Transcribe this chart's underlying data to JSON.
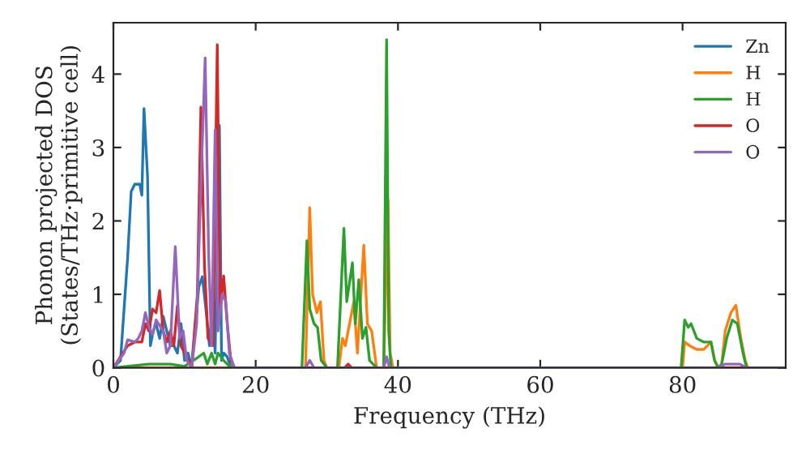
{
  "chart_data": {
    "type": "line",
    "xlabel": "Frequency (THz)",
    "ylabel": "Phonon projected DOS\n(States/THz·primitive cell)",
    "xlim": [
      0,
      94.5
    ],
    "ylim": [
      0,
      4.7
    ],
    "xticks": [
      0,
      20,
      40,
      60,
      80
    ],
    "yticks": [
      0,
      1,
      2,
      3,
      4
    ],
    "grid": false,
    "legend": "top right",
    "series": [
      {
        "name": "Zn",
        "color": "#1f77b4",
        "x": [
          0,
          1,
          2,
          2.5,
          3,
          3.7,
          4,
          4.3,
          4.8,
          5.2,
          5.6,
          6,
          6.5,
          7,
          7.5,
          8,
          8.5,
          9,
          9.5,
          10,
          10.5,
          11,
          12,
          12.5,
          13,
          13.5,
          14,
          14.3,
          14.9,
          15.2,
          15.5,
          16,
          16.5,
          17,
          94
        ],
        "values": [
          0,
          0.1,
          1.5,
          2.4,
          2.5,
          2.5,
          2.35,
          3.53,
          2.6,
          0.3,
          0.5,
          0.6,
          0.4,
          0.7,
          0.5,
          0.3,
          0.3,
          0.2,
          0.6,
          0.1,
          0.2,
          0,
          1.1,
          1.24,
          0.8,
          0.3,
          0.98,
          0.2,
          3.3,
          0.1,
          0.2,
          0.15,
          0,
          0,
          0
        ]
      },
      {
        "name": "H",
        "color": "#ff7f0e",
        "x": [
          0,
          27,
          27.6,
          28,
          28.6,
          29.1,
          29.6,
          30,
          31.7,
          32.2,
          32.6,
          33.2,
          33.8,
          34.3,
          35.2,
          35.7,
          36.3,
          37,
          38,
          38.6,
          38.9,
          39.3,
          80,
          80.3,
          81,
          82,
          83,
          84,
          84.5,
          85,
          85.5,
          86,
          86.8,
          87.5,
          88.2,
          88.8,
          89.2,
          94
        ],
        "values": [
          0,
          0,
          2.18,
          1.0,
          0.75,
          0.9,
          0.1,
          0,
          0,
          0.4,
          0.3,
          0.6,
          0.9,
          0.2,
          1.67,
          0.6,
          0.5,
          0,
          0,
          2.29,
          0.2,
          0,
          0,
          0.35,
          0.3,
          0.25,
          0.25,
          0.35,
          0.1,
          0,
          0.05,
          0.5,
          0.75,
          0.85,
          0.4,
          0.1,
          0,
          0
        ]
      },
      {
        "name": "H",
        "color": "#2ca02c",
        "x": [
          0,
          3,
          5,
          8,
          10,
          12,
          12.7,
          13.2,
          13.8,
          14.3,
          14.7,
          15.5,
          16.5,
          26.5,
          27.2,
          27.6,
          28.2,
          28.7,
          29.2,
          30,
          31.5,
          32.4,
          32.8,
          33.6,
          34,
          34.5,
          35,
          35.5,
          36,
          37,
          38,
          38.4,
          38.7,
          39,
          79.8,
          80.3,
          80.8,
          81.2,
          82,
          83,
          84,
          84.5,
          85,
          85.5,
          86.2,
          87,
          87.7,
          88.5,
          89,
          94
        ],
        "values": [
          0,
          0.03,
          0.05,
          0.05,
          0.02,
          0.15,
          0.2,
          0.05,
          0.2,
          0.05,
          0.2,
          0.1,
          0,
          0,
          1.73,
          0.8,
          0.6,
          0.55,
          0.1,
          0,
          0,
          1.9,
          0.9,
          1.43,
          0.6,
          1.2,
          0.4,
          0.55,
          0.1,
          0,
          0,
          4.47,
          0.5,
          0,
          0,
          0.65,
          0.55,
          0.6,
          0.4,
          0.35,
          0.35,
          0.1,
          0,
          0.05,
          0.4,
          0.65,
          0.6,
          0.2,
          0,
          0
        ]
      },
      {
        "name": "O",
        "color": "#d62728",
        "x": [
          0,
          2,
          3,
          4,
          4.5,
          5,
          5.5,
          6,
          6.5,
          7,
          7.5,
          8,
          8.5,
          9,
          9.5,
          10,
          11,
          11.8,
          12.3,
          12.8,
          13.3,
          14,
          14.6,
          15,
          15.5,
          16,
          16.5,
          17,
          32.5,
          33,
          33.5,
          94
        ],
        "values": [
          0,
          0.3,
          0.35,
          0.35,
          0.6,
          0.5,
          0.8,
          0.75,
          1.05,
          0.5,
          0.35,
          0.5,
          0.3,
          0.85,
          0.3,
          0.2,
          0,
          1.0,
          3.55,
          1.4,
          0.4,
          0.3,
          4.4,
          0.8,
          1.25,
          0.6,
          0.1,
          0,
          0,
          0.05,
          0,
          0
        ]
      },
      {
        "name": "O",
        "color": "#9467bd",
        "x": [
          0,
          1.5,
          2,
          3,
          3.5,
          4,
          4.5,
          5,
          5.5,
          6,
          7,
          7.5,
          8,
          8.7,
          9.3,
          9.8,
          10.3,
          11,
          11.7,
          12.3,
          12.9,
          13.4,
          13.8,
          14.3,
          14.7,
          15.3,
          15.8,
          16.3,
          17,
          27,
          27.6,
          28.2,
          38,
          38.4,
          38.8,
          85,
          86,
          88,
          89,
          94
        ],
        "values": [
          0,
          0.2,
          0.38,
          0.35,
          0.4,
          0.5,
          0.75,
          0.55,
          0.45,
          0.65,
          0.5,
          0.2,
          0.3,
          1.65,
          0.4,
          0.5,
          0.1,
          0,
          0.6,
          2.5,
          4.22,
          1.5,
          0.3,
          3.24,
          0.5,
          1.0,
          0.9,
          0.2,
          0,
          0,
          0.1,
          0,
          0,
          0.15,
          0,
          0,
          0.05,
          0.05,
          0,
          0
        ]
      }
    ]
  }
}
